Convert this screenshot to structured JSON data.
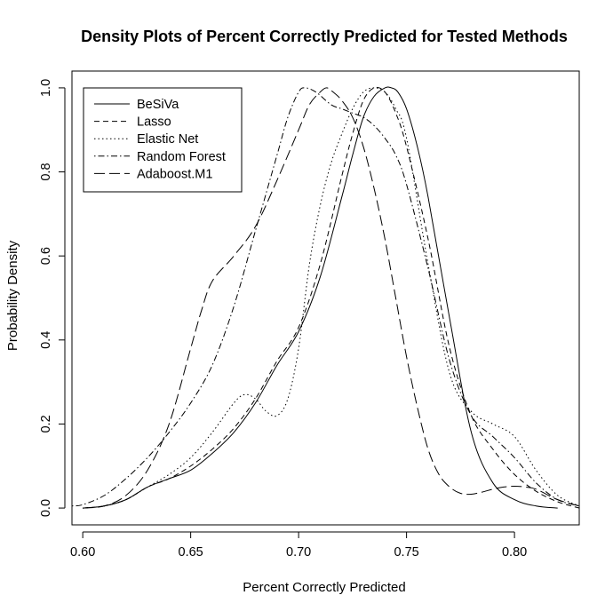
{
  "chart_data": {
    "type": "line",
    "title": "Density Plots of Percent Correctly Predicted for Tested Methods",
    "xlabel": "Percent Correctly Predicted",
    "ylabel": "Probability Density",
    "xlim": [
      0.595,
      0.83
    ],
    "ylim": [
      -0.04,
      1.04
    ],
    "xticks": [
      0.6,
      0.65,
      0.7,
      0.75,
      0.8
    ],
    "xtick_labels": [
      "0.60",
      "0.65",
      "0.70",
      "0.75",
      "0.80"
    ],
    "yticks": [
      0.0,
      0.2,
      0.4,
      0.6,
      0.8,
      1.0
    ],
    "ytick_labels": [
      "0.0",
      "0.2",
      "0.4",
      "0.6",
      "0.8",
      "1.0"
    ],
    "grid": false,
    "legend_position": "top-left",
    "series": [
      {
        "name": "BeSiVa",
        "dash": "solid",
        "x": [
          0.6,
          0.61,
          0.62,
          0.63,
          0.64,
          0.65,
          0.66,
          0.67,
          0.68,
          0.69,
          0.7,
          0.71,
          0.72,
          0.725,
          0.73,
          0.735,
          0.74,
          0.743,
          0.746,
          0.75,
          0.755,
          0.76,
          0.77,
          0.78,
          0.79,
          0.8,
          0.81,
          0.82
        ],
        "y": [
          0.0,
          0.005,
          0.02,
          0.05,
          0.07,
          0.09,
          0.13,
          0.18,
          0.25,
          0.34,
          0.42,
          0.55,
          0.74,
          0.84,
          0.93,
          0.98,
          1.0,
          1.0,
          0.99,
          0.95,
          0.86,
          0.74,
          0.45,
          0.18,
          0.06,
          0.02,
          0.005,
          0.0
        ]
      },
      {
        "name": "Lasso",
        "dash": "short-dash",
        "x": [
          0.6,
          0.61,
          0.62,
          0.63,
          0.64,
          0.65,
          0.66,
          0.67,
          0.68,
          0.69,
          0.7,
          0.71,
          0.72,
          0.725,
          0.73,
          0.735,
          0.74,
          0.745,
          0.75,
          0.76,
          0.77,
          0.78,
          0.79,
          0.8,
          0.81,
          0.82,
          0.83
        ],
        "y": [
          0.0,
          0.005,
          0.02,
          0.05,
          0.07,
          0.1,
          0.14,
          0.19,
          0.26,
          0.35,
          0.43,
          0.58,
          0.79,
          0.89,
          0.97,
          1.0,
          0.99,
          0.94,
          0.86,
          0.64,
          0.38,
          0.22,
          0.14,
          0.08,
          0.04,
          0.015,
          0.0
        ]
      },
      {
        "name": "Elastic Net",
        "dash": "dotted",
        "x": [
          0.6,
          0.61,
          0.62,
          0.63,
          0.64,
          0.65,
          0.66,
          0.67,
          0.675,
          0.68,
          0.685,
          0.69,
          0.695,
          0.7,
          0.705,
          0.71,
          0.715,
          0.72,
          0.725,
          0.73,
          0.735,
          0.74,
          0.745,
          0.75,
          0.76,
          0.77,
          0.78,
          0.79,
          0.8,
          0.81,
          0.82,
          0.83
        ],
        "y": [
          0.0,
          0.005,
          0.02,
          0.05,
          0.08,
          0.12,
          0.18,
          0.25,
          0.27,
          0.26,
          0.23,
          0.22,
          0.26,
          0.38,
          0.58,
          0.72,
          0.82,
          0.89,
          0.95,
          0.99,
          1.0,
          0.99,
          0.95,
          0.88,
          0.58,
          0.32,
          0.23,
          0.2,
          0.17,
          0.09,
          0.03,
          0.005
        ]
      },
      {
        "name": "Random Forest",
        "dash": "dot-dash",
        "x": [
          0.595,
          0.6,
          0.61,
          0.62,
          0.63,
          0.64,
          0.65,
          0.66,
          0.67,
          0.68,
          0.69,
          0.695,
          0.7,
          0.703,
          0.708,
          0.715,
          0.72,
          0.725,
          0.73,
          0.735,
          0.74,
          0.745,
          0.75,
          0.76,
          0.77,
          0.78,
          0.79,
          0.8,
          0.81,
          0.82,
          0.83
        ],
        "y": [
          0.005,
          0.008,
          0.03,
          0.07,
          0.12,
          0.18,
          0.25,
          0.34,
          0.48,
          0.66,
          0.84,
          0.93,
          0.99,
          1.0,
          0.99,
          0.96,
          0.95,
          0.94,
          0.93,
          0.91,
          0.88,
          0.84,
          0.77,
          0.57,
          0.35,
          0.22,
          0.17,
          0.12,
          0.06,
          0.02,
          0.005
        ]
      },
      {
        "name": "Adaboost.M1",
        "dash": "long-dash",
        "x": [
          0.6,
          0.61,
          0.62,
          0.63,
          0.64,
          0.65,
          0.655,
          0.66,
          0.67,
          0.68,
          0.69,
          0.7,
          0.705,
          0.71,
          0.713,
          0.716,
          0.72,
          0.725,
          0.73,
          0.735,
          0.74,
          0.745,
          0.75,
          0.755,
          0.76,
          0.765,
          0.77,
          0.775,
          0.78,
          0.785,
          0.79,
          0.795,
          0.8,
          0.805,
          0.81,
          0.82,
          0.83
        ],
        "y": [
          0.0,
          0.005,
          0.03,
          0.09,
          0.2,
          0.38,
          0.47,
          0.54,
          0.6,
          0.67,
          0.78,
          0.9,
          0.96,
          0.99,
          1.0,
          0.99,
          0.97,
          0.93,
          0.86,
          0.76,
          0.64,
          0.5,
          0.36,
          0.24,
          0.14,
          0.08,
          0.05,
          0.035,
          0.033,
          0.038,
          0.045,
          0.05,
          0.052,
          0.05,
          0.045,
          0.02,
          0.005
        ]
      }
    ]
  }
}
